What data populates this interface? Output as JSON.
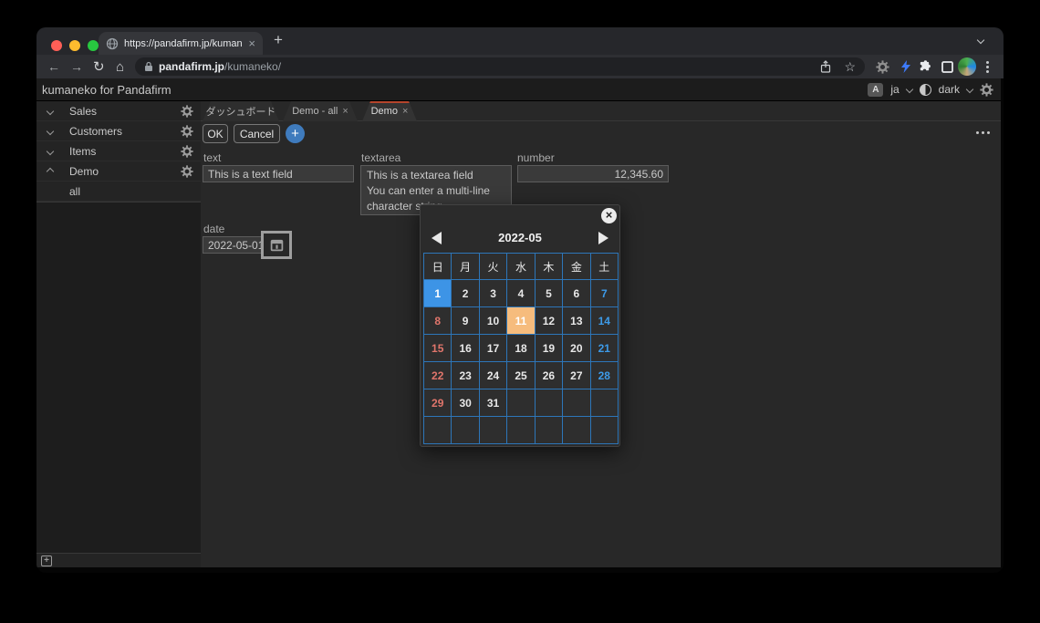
{
  "browser": {
    "active_tab_title": "https://pandafirm.jp/kumaneko",
    "url": {
      "domain": "pandafirm.jp",
      "path": "/kumaneko/"
    }
  },
  "glyphs": {
    "close": "×",
    "new_tab": "+",
    "back": "←",
    "forward": "→",
    "reload": "↻",
    "home": "⌂",
    "star": "☆",
    "translate": "A",
    "plus": "+",
    "add_box": "+"
  },
  "icons": {
    "favicon": "globe-icon",
    "lock": "lock-icon",
    "share": "share-icon",
    "extensions": [
      "gear-icon",
      "lightning-icon",
      "puzzle-icon",
      "side-panel-icon",
      "profile-avatar",
      "kebab-menu-icon"
    ],
    "more_menu": "ellipsis-horizontal-icon",
    "date_button": "calendar-icon"
  },
  "app": {
    "header": {
      "title": "kumaneko for Pandafirm",
      "language": "ja",
      "theme": "dark"
    },
    "sidebar": {
      "items": [
        {
          "label": "Sales"
        },
        {
          "label": "Customers"
        },
        {
          "label": "Items"
        },
        {
          "label": "Demo"
        }
      ],
      "demo_sub_item": "all"
    },
    "tabs": [
      {
        "label": "ダッシュボード",
        "active": false,
        "closable": false
      },
      {
        "label": "Demo - all",
        "active": false,
        "closable": true
      },
      {
        "label": "Demo",
        "active": true,
        "closable": true
      }
    ],
    "actions": {
      "ok": "OK",
      "cancel": "Cancel"
    },
    "form": {
      "text": {
        "label": "text",
        "value": "This is a text field"
      },
      "textarea": {
        "label": "textarea",
        "value": "This is a textarea field\nYou can enter a multi-line\ncharacter string"
      },
      "number": {
        "label": "number",
        "value": "12,345.60"
      },
      "date": {
        "label": "date",
        "value": "2022-05-01"
      }
    },
    "calendar": {
      "title": "2022-05",
      "day_headers": [
        "日",
        "月",
        "火",
        "水",
        "木",
        "金",
        "土"
      ],
      "weeks": [
        [
          "1",
          "2",
          "3",
          "4",
          "5",
          "6",
          "7"
        ],
        [
          "8",
          "9",
          "10",
          "11",
          "12",
          "13",
          "14"
        ],
        [
          "15",
          "16",
          "17",
          "18",
          "19",
          "20",
          "21"
        ],
        [
          "22",
          "23",
          "24",
          "25",
          "26",
          "27",
          "28"
        ],
        [
          "29",
          "30",
          "31",
          "",
          "",
          "",
          ""
        ],
        [
          "",
          "",
          "",
          "",
          "",
          "",
          ""
        ]
      ],
      "selected_day": "1",
      "today_day": "11"
    },
    "colors": {
      "selected_day_bg": "#3d94e6",
      "today_bg": "#f6bc7d",
      "sunday_text": "#e0756b",
      "saturday_text": "#3d9be9",
      "calendar_grid": "#2d76b9",
      "active_tab_accent": "#b5452c",
      "add_button_bg": "#3f7bbd"
    }
  }
}
